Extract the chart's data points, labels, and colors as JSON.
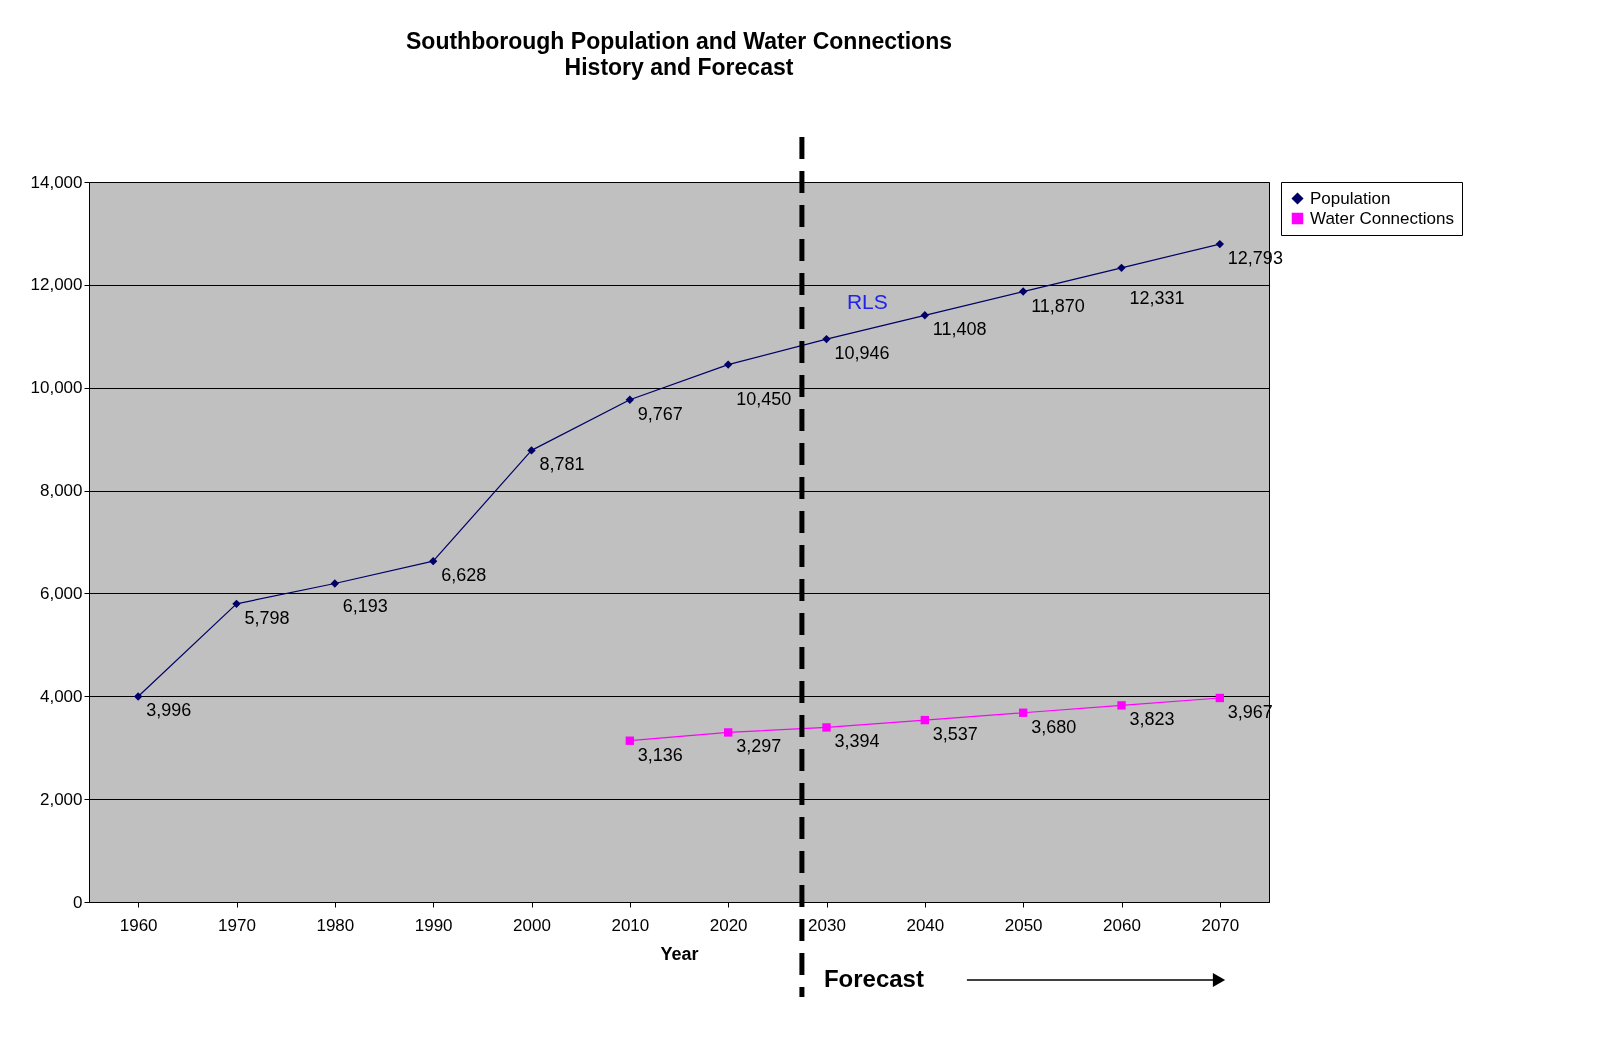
{
  "chart_data": {
    "type": "line",
    "title": "Southborough Population and Water Connections",
    "subtitle": "History and Forecast",
    "xlabel": "Year",
    "x": [
      1960,
      1970,
      1980,
      1990,
      2000,
      2010,
      2020,
      2030,
      2040,
      2050,
      2060,
      2070
    ],
    "series": [
      {
        "name": "Population",
        "color": "#000066",
        "marker": "diamond",
        "values": [
          3996,
          5798,
          6193,
          6628,
          8781,
          9767,
          10450,
          10946,
          11408,
          11870,
          12331,
          12793
        ],
        "value_labels": [
          "3,996",
          "5,798",
          "6,193",
          "6,628",
          "8,781",
          "9,767",
          "10,450",
          "10,946",
          "11,408",
          "11,870",
          "12,331",
          "12,793"
        ]
      },
      {
        "name": "Water Connections",
        "color": "#ff00ff",
        "marker": "square",
        "values": [
          null,
          null,
          null,
          null,
          null,
          3136,
          3297,
          3394,
          3537,
          3680,
          3823,
          3967
        ],
        "value_labels": [
          null,
          null,
          null,
          null,
          null,
          "3,136",
          "3,297",
          "3,394",
          "3,537",
          "3,680",
          "3,823",
          "3,967"
        ]
      }
    ],
    "xlim": [
      1955,
      2075
    ],
    "xticks": [
      1960,
      1970,
      1980,
      1990,
      2000,
      2010,
      2020,
      2030,
      2040,
      2050,
      2060,
      2070
    ],
    "ylim": [
      0,
      14000
    ],
    "yticks": [
      0,
      {
        "value": 2000,
        "label": "2,000"
      },
      {
        "value": 4000,
        "label": "4,000"
      },
      {
        "value": 6000,
        "label": "6,000"
      },
      {
        "value": 8000,
        "label": "8,000"
      },
      {
        "value": 10000,
        "label": "10,000"
      },
      {
        "value": 12000,
        "label": "12,000"
      },
      {
        "value": 14000,
        "label": "14,000"
      }
    ],
    "ref_lines": [
      {
        "axis": "x",
        "value": 2027.5,
        "label": "Forecast",
        "color": "#000000",
        "line_style": "dashed"
      }
    ],
    "annotations": [
      "RLS"
    ],
    "grid": "y",
    "legend": "right",
    "line_style": "solid"
  }
}
